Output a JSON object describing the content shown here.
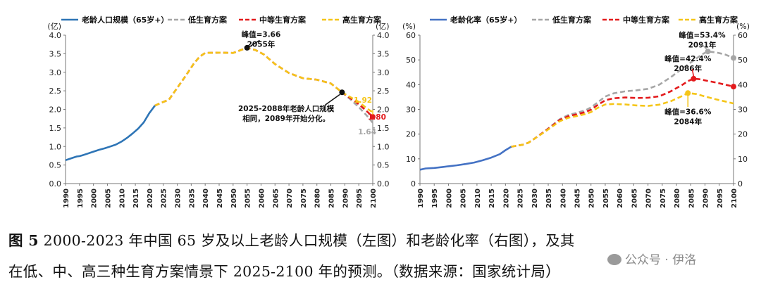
{
  "chart_data": [
    {
      "type": "line",
      "x_ticks": [
        "1990",
        "1995",
        "2000",
        "2005",
        "2010",
        "2015",
        "2020",
        "2025",
        "2030",
        "2035",
        "2040",
        "2045",
        "2050",
        "2055",
        "2060",
        "2065",
        "2070",
        "2075",
        "2080",
        "2085",
        "2090",
        "2095",
        "2100"
      ],
      "xlim": [
        1990,
        2100
      ],
      "ylim": [
        0,
        4
      ],
      "y_ticks": [
        "0.0",
        "0.5",
        "1.0",
        "1.5",
        "2.0",
        "2.5",
        "3.0",
        "3.5",
        "4.0"
      ],
      "y_unit_left": "(亿)",
      "y_unit_right": "(亿)",
      "legend": [
        "老龄人口规模（65岁+）",
        "低生育方案",
        "中等生育方案",
        "高生育方案"
      ],
      "colors": {
        "history": "#2e75b6",
        "low": "#a6a6a6",
        "mid": "#e31a1c",
        "high": "#f5c518"
      },
      "series": [
        {
          "name": "老龄人口规模（65岁+）",
          "key": "history",
          "x": [
            1990,
            1992,
            1994,
            1995,
            1996,
            1998,
            2000,
            2002,
            2004,
            2006,
            2008,
            2010,
            2012,
            2014,
            2016,
            2018,
            2020,
            2021,
            2022
          ],
          "y": [
            0.63,
            0.68,
            0.73,
            0.74,
            0.76,
            0.81,
            0.86,
            0.91,
            0.95,
            1.0,
            1.05,
            1.13,
            1.23,
            1.35,
            1.48,
            1.65,
            1.9,
            2.0,
            2.1
          ]
        },
        {
          "name": "低生育方案",
          "key": "low",
          "x": [
            2022,
            2024,
            2027,
            2030,
            2033,
            2036,
            2038,
            2040,
            2045,
            2050,
            2055,
            2058,
            2061,
            2065,
            2070,
            2075,
            2080,
            2085,
            2089,
            2092,
            2095,
            2098,
            2100
          ],
          "y": [
            2.1,
            2.17,
            2.26,
            2.58,
            2.9,
            3.24,
            3.42,
            3.52,
            3.53,
            3.52,
            3.66,
            3.6,
            3.48,
            3.22,
            2.98,
            2.84,
            2.8,
            2.7,
            2.46,
            2.27,
            2.06,
            1.82,
            1.64
          ]
        },
        {
          "name": "中等生育方案",
          "key": "mid",
          "x": [
            2022,
            2024,
            2027,
            2030,
            2033,
            2036,
            2038,
            2040,
            2045,
            2050,
            2055,
            2058,
            2061,
            2065,
            2070,
            2075,
            2080,
            2085,
            2089,
            2092,
            2095,
            2098,
            2100
          ],
          "y": [
            2.1,
            2.17,
            2.26,
            2.58,
            2.9,
            3.24,
            3.42,
            3.52,
            3.53,
            3.52,
            3.66,
            3.6,
            3.48,
            3.22,
            2.98,
            2.84,
            2.8,
            2.7,
            2.46,
            2.3,
            2.14,
            1.94,
            1.8
          ]
        },
        {
          "name": "高生育方案",
          "key": "high",
          "x": [
            2022,
            2024,
            2027,
            2030,
            2033,
            2036,
            2038,
            2040,
            2045,
            2050,
            2055,
            2058,
            2061,
            2065,
            2070,
            2075,
            2080,
            2085,
            2089,
            2092,
            2095,
            2098,
            2100
          ],
          "y": [
            2.1,
            2.17,
            2.26,
            2.58,
            2.9,
            3.24,
            3.42,
            3.52,
            3.53,
            3.52,
            3.66,
            3.6,
            3.48,
            3.22,
            2.98,
            2.84,
            2.8,
            2.7,
            2.46,
            2.33,
            2.2,
            2.02,
            1.92
          ]
        }
      ],
      "markers": [
        {
          "key": "mid",
          "x": 2055,
          "y": 3.66,
          "color": "#111111"
        },
        {
          "key": "mid",
          "x": 2089,
          "y": 2.46,
          "color": "#111111"
        },
        {
          "key": "mid",
          "x": 2100,
          "y": 1.8,
          "color": "#e31a1c"
        }
      ],
      "annotations": [
        {
          "lines": [
            "峰值=3.66",
            "2055年"
          ],
          "target": [
            2055,
            3.66
          ],
          "text_at": [
            2060,
            3.95
          ]
        },
        {
          "lines": [
            "2025-2088年老龄人口规模",
            "相同，2089年开始分化。"
          ],
          "target": [
            2089,
            2.46
          ],
          "text_at": [
            2069,
            1.95
          ]
        }
      ],
      "end_labels": [
        {
          "text": "1.92",
          "x": 2100,
          "y": 1.92,
          "color": "#f5c518"
        },
        {
          "text": "1.80",
          "x": 2100,
          "y": 1.8,
          "color": "#e31a1c"
        },
        {
          "text": "1.64",
          "x": 2100,
          "y": 1.64,
          "color": "#a6a6a6"
        }
      ]
    },
    {
      "type": "line",
      "x_ticks": [
        "1990",
        "1995",
        "2000",
        "2005",
        "2010",
        "2015",
        "2020",
        "2025",
        "2030",
        "2035",
        "2040",
        "2045",
        "2050",
        "2055",
        "2060",
        "2065",
        "2070",
        "2075",
        "2080",
        "2085",
        "2090",
        "2095",
        "2100"
      ],
      "xlim": [
        1990,
        2100
      ],
      "ylim": [
        0,
        60
      ],
      "y_ticks": [
        "0",
        "10",
        "20",
        "30",
        "40",
        "50",
        "60"
      ],
      "y_unit_left": "(%)",
      "y_unit_right": "(%)",
      "legend": [
        "老龄化率（65岁+）",
        "低生育方案",
        "中等生育方案",
        "高生育方案"
      ],
      "colors": {
        "history": "#4472c4",
        "low": "#a6a6a6",
        "mid": "#e31a1c",
        "high": "#f5c518"
      },
      "series": [
        {
          "name": "老龄化率（65岁+）",
          "key": "history",
          "x": [
            1990,
            1992,
            1995,
            1998,
            2000,
            2003,
            2006,
            2009,
            2012,
            2015,
            2018,
            2020,
            2022
          ],
          "y": [
            5.6,
            6.1,
            6.3,
            6.7,
            7.0,
            7.4,
            7.9,
            8.5,
            9.4,
            10.5,
            11.9,
            13.5,
            14.9
          ]
        },
        {
          "name": "低生育方案",
          "key": "low",
          "x": [
            2022,
            2024,
            2026,
            2028,
            2030,
            2033,
            2036,
            2039,
            2042,
            2045,
            2048,
            2050,
            2052,
            2055,
            2058,
            2062,
            2066,
            2070,
            2074,
            2078,
            2082,
            2086,
            2089,
            2091,
            2094,
            2097,
            2100
          ],
          "y": [
            14.9,
            15.3,
            15.7,
            16.5,
            18.0,
            20.5,
            23.2,
            26.0,
            27.7,
            28.6,
            29.6,
            30.8,
            32.5,
            35.2,
            36.5,
            37.3,
            37.7,
            38.3,
            40.0,
            43.0,
            46.5,
            49.8,
            52.3,
            53.4,
            53.0,
            52.2,
            50.8
          ]
        },
        {
          "name": "中等生育方案",
          "key": "mid",
          "x": [
            2022,
            2024,
            2026,
            2028,
            2030,
            2033,
            2036,
            2039,
            2042,
            2045,
            2048,
            2050,
            2052,
            2055,
            2058,
            2062,
            2066,
            2070,
            2074,
            2078,
            2082,
            2084,
            2086,
            2088,
            2091,
            2094,
            2097,
            2100
          ],
          "y": [
            14.9,
            15.3,
            15.7,
            16.5,
            18.0,
            20.5,
            23.0,
            25.7,
            27.2,
            28.0,
            28.9,
            29.9,
            31.5,
            33.7,
            34.5,
            34.8,
            34.6,
            34.7,
            35.3,
            37.3,
            39.9,
            41.4,
            42.4,
            42.2,
            41.5,
            40.8,
            40.0,
            39.2
          ]
        },
        {
          "name": "高生育方案",
          "key": "high",
          "x": [
            2022,
            2024,
            2026,
            2028,
            2030,
            2033,
            2036,
            2039,
            2042,
            2045,
            2048,
            2050,
            2052,
            2055,
            2058,
            2062,
            2066,
            2070,
            2074,
            2078,
            2082,
            2084,
            2087,
            2090,
            2094,
            2097,
            2100
          ],
          "y": [
            14.9,
            15.3,
            15.7,
            16.5,
            18.0,
            20.3,
            22.7,
            25.2,
            26.6,
            27.3,
            28.1,
            28.9,
            30.4,
            32.0,
            32.2,
            32.0,
            31.6,
            31.4,
            31.9,
            33.3,
            35.4,
            36.6,
            36.2,
            35.2,
            34.0,
            33.2,
            32.4
          ]
        }
      ],
      "markers": [
        {
          "key": "low",
          "x": 2091,
          "y": 53.4,
          "color": "#a6a6a6"
        },
        {
          "key": "mid",
          "x": 2086,
          "y": 42.4,
          "color": "#e31a1c"
        },
        {
          "key": "high",
          "x": 2084,
          "y": 36.6,
          "color": "#f5c518"
        },
        {
          "key": "low",
          "x": 2100,
          "y": 50.8,
          "color": "#a6a6a6"
        },
        {
          "key": "mid",
          "x": 2100,
          "y": 39.2,
          "color": "#e31a1c"
        }
      ],
      "annotations": [
        {
          "lines": [
            "峰值=53.4%",
            "2091年"
          ],
          "target": [
            2091,
            53.4
          ],
          "text_at": [
            2089,
            59.0
          ]
        },
        {
          "lines": [
            "峰值=42.4%",
            "2086年"
          ],
          "target": [
            2086,
            42.4
          ],
          "text_at": [
            2084,
            49.5
          ]
        },
        {
          "lines": [
            "峰值=36.6%",
            "2084年"
          ],
          "target": [
            2084,
            36.6
          ],
          "text_at": [
            2084,
            28.0
          ]
        }
      ]
    }
  ],
  "caption": {
    "figure_number": "图 5",
    "line1_rest": " 2000-2023 年中国 65 岁及以上老龄人口规模（左图）和老龄化率（右图），及其",
    "line2": "在低、中、高三种生育方案情景下 2025-2100 年的预测。（数据来源：国家统计局）"
  },
  "watermark": "公众号 · 伊洛"
}
